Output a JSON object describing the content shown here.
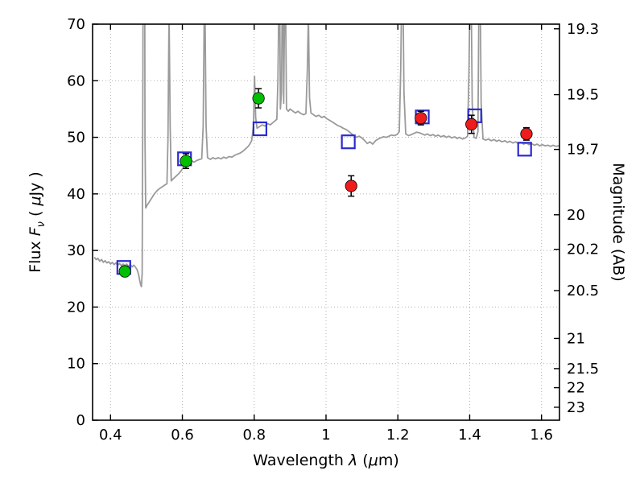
{
  "style": {
    "background": "#ffffff",
    "frame_color": "#000000",
    "grid_color": "#b0b0b0",
    "tick_label_size": 18
  },
  "axes": {
    "x": {
      "label_prefix": "Wavelength  ",
      "label_symbol": "λ",
      "label_mid": " (",
      "label_mu": "μ",
      "label_suffix": "m)",
      "min": 0.35,
      "max": 1.65,
      "ticks": [
        0.4,
        0.6,
        0.8,
        1.0,
        1.2,
        1.4,
        1.6
      ],
      "tick_labels": [
        "0.4",
        "0.6",
        "0.8",
        "1",
        "1.2",
        "1.4",
        "1.6"
      ]
    },
    "y_left": {
      "label_prefix": "Flux  ",
      "label_symbol": "F",
      "label_sub": "ν",
      "label_mid": "  ( ",
      "label_mu": "μ",
      "label_suffix": "Jy )",
      "min": 0,
      "max": 70,
      "ticks": [
        0,
        10,
        20,
        30,
        40,
        50,
        60,
        70
      ],
      "tick_labels": [
        "0",
        "10",
        "20",
        "30",
        "40",
        "50",
        "60",
        "70"
      ]
    },
    "y_right": {
      "label": "Magnitude (AB)",
      "tick_labels": [
        "19.3",
        "19.5",
        "19.7",
        "20",
        "20.2",
        "20.5",
        "21",
        "21.5",
        "22",
        "23"
      ],
      "tick_flux_values": [
        69.18,
        57.54,
        47.86,
        36.31,
        30.2,
        22.91,
        14.45,
        9.12,
        5.75,
        2.29
      ]
    }
  },
  "chart_data": {
    "type": "line",
    "title": "",
    "xlabel": "Wavelength λ (μm)",
    "ylabel_left": "Flux Fν ( μJy )",
    "ylabel_right": "Magnitude (AB)",
    "xlim": [
      0.35,
      1.65
    ],
    "ylim_left": [
      0,
      70
    ],
    "grid": "dotted",
    "legend": "none",
    "series": [
      {
        "name": "model-spectrum",
        "type": "line",
        "color": "#9a9a9a",
        "linewidth": 1.8,
        "points": [
          [
            0.355,
            28.8
          ],
          [
            0.36,
            28.4
          ],
          [
            0.365,
            28.6
          ],
          [
            0.37,
            28.1
          ],
          [
            0.375,
            28.4
          ],
          [
            0.38,
            27.9
          ],
          [
            0.385,
            28.2
          ],
          [
            0.39,
            27.8
          ],
          [
            0.395,
            28.0
          ],
          [
            0.4,
            27.6
          ],
          [
            0.405,
            27.9
          ],
          [
            0.41,
            27.5
          ],
          [
            0.415,
            27.8
          ],
          [
            0.42,
            27.4
          ],
          [
            0.425,
            27.7
          ],
          [
            0.43,
            27.3
          ],
          [
            0.435,
            27.6
          ],
          [
            0.44,
            27.3
          ],
          [
            0.445,
            27.6
          ],
          [
            0.45,
            27.2
          ],
          [
            0.455,
            27.5
          ],
          [
            0.46,
            27.1
          ],
          [
            0.465,
            27.4
          ],
          [
            0.47,
            27.0
          ],
          [
            0.474,
            26.6
          ],
          [
            0.478,
            25.8
          ],
          [
            0.481,
            24.8
          ],
          [
            0.484,
            23.9
          ],
          [
            0.486,
            23.6
          ],
          [
            0.488,
            26.0
          ],
          [
            0.49,
            60.0
          ],
          [
            0.492,
            130.0
          ],
          [
            0.494,
            130.0
          ],
          [
            0.496,
            50.0
          ],
          [
            0.498,
            37.5
          ],
          [
            0.502,
            38.0
          ],
          [
            0.508,
            38.6
          ],
          [
            0.515,
            39.3
          ],
          [
            0.522,
            40.0
          ],
          [
            0.53,
            40.6
          ],
          [
            0.538,
            41.0
          ],
          [
            0.545,
            41.3
          ],
          [
            0.552,
            41.6
          ],
          [
            0.557,
            41.8
          ],
          [
            0.56,
            50.0
          ],
          [
            0.563,
            72.5
          ],
          [
            0.566,
            52.0
          ],
          [
            0.569,
            42.3
          ],
          [
            0.575,
            42.7
          ],
          [
            0.582,
            43.1
          ],
          [
            0.59,
            43.6
          ],
          [
            0.598,
            44.2
          ],
          [
            0.605,
            44.9
          ],
          [
            0.612,
            45.4
          ],
          [
            0.618,
            45.7
          ],
          [
            0.625,
            45.9
          ],
          [
            0.632,
            45.6
          ],
          [
            0.64,
            45.9
          ],
          [
            0.648,
            46.1
          ],
          [
            0.654,
            46.2
          ],
          [
            0.658,
            52.0
          ],
          [
            0.661,
            73.5
          ],
          [
            0.663,
            73.5
          ],
          [
            0.666,
            52.0
          ],
          [
            0.67,
            46.4
          ],
          [
            0.678,
            46.1
          ],
          [
            0.685,
            46.4
          ],
          [
            0.692,
            46.2
          ],
          [
            0.7,
            46.4
          ],
          [
            0.708,
            46.2
          ],
          [
            0.715,
            46.5
          ],
          [
            0.722,
            46.3
          ],
          [
            0.73,
            46.6
          ],
          [
            0.738,
            46.5
          ],
          [
            0.745,
            46.8
          ],
          [
            0.752,
            47.0
          ],
          [
            0.76,
            47.2
          ],
          [
            0.768,
            47.5
          ],
          [
            0.775,
            47.9
          ],
          [
            0.782,
            48.3
          ],
          [
            0.788,
            48.8
          ],
          [
            0.793,
            49.4
          ],
          [
            0.798,
            52.0
          ],
          [
            0.801,
            60.8
          ],
          [
            0.804,
            53.5
          ],
          [
            0.808,
            51.6
          ],
          [
            0.815,
            51.9
          ],
          [
            0.822,
            52.2
          ],
          [
            0.83,
            52.0
          ],
          [
            0.838,
            52.4
          ],
          [
            0.845,
            52.2
          ],
          [
            0.852,
            52.6
          ],
          [
            0.858,
            52.9
          ],
          [
            0.863,
            53.2
          ],
          [
            0.866,
            60.0
          ],
          [
            0.869,
            76.0
          ],
          [
            0.871,
            76.0
          ],
          [
            0.873,
            55.0
          ],
          [
            0.876,
            58.0
          ],
          [
            0.878,
            76.0
          ],
          [
            0.88,
            76.0
          ],
          [
            0.882,
            56.0
          ],
          [
            0.885,
            76.0
          ],
          [
            0.887,
            76.0
          ],
          [
            0.89,
            55.0
          ],
          [
            0.895,
            54.6
          ],
          [
            0.9,
            55.0
          ],
          [
            0.908,
            54.6
          ],
          [
            0.915,
            54.3
          ],
          [
            0.922,
            54.6
          ],
          [
            0.93,
            54.2
          ],
          [
            0.938,
            54.0
          ],
          [
            0.944,
            54.2
          ],
          [
            0.948,
            62.0
          ],
          [
            0.951,
            71.5
          ],
          [
            0.954,
            57.0
          ],
          [
            0.958,
            54.3
          ],
          [
            0.965,
            54.0
          ],
          [
            0.972,
            53.7
          ],
          [
            0.98,
            53.9
          ],
          [
            0.988,
            53.5
          ],
          [
            0.995,
            53.7
          ],
          [
            1.002,
            53.3
          ],
          [
            1.01,
            53.0
          ],
          [
            1.018,
            52.7
          ],
          [
            1.025,
            52.4
          ],
          [
            1.032,
            52.1
          ],
          [
            1.04,
            51.9
          ],
          [
            1.048,
            51.6
          ],
          [
            1.055,
            51.4
          ],
          [
            1.062,
            51.1
          ],
          [
            1.07,
            50.7
          ],
          [
            1.078,
            50.3
          ],
          [
            1.085,
            50.0
          ],
          [
            1.092,
            50.2
          ],
          [
            1.1,
            49.9
          ],
          [
            1.108,
            49.4
          ],
          [
            1.115,
            48.9
          ],
          [
            1.122,
            49.2
          ],
          [
            1.13,
            48.8
          ],
          [
            1.138,
            49.4
          ],
          [
            1.145,
            49.7
          ],
          [
            1.152,
            49.9
          ],
          [
            1.16,
            50.1
          ],
          [
            1.168,
            50.0
          ],
          [
            1.175,
            50.2
          ],
          [
            1.182,
            50.4
          ],
          [
            1.19,
            50.3
          ],
          [
            1.198,
            50.5
          ],
          [
            1.204,
            51.0
          ],
          [
            1.208,
            62.0
          ],
          [
            1.211,
            77.0
          ],
          [
            1.214,
            77.0
          ],
          [
            1.217,
            58.0
          ],
          [
            1.222,
            50.6
          ],
          [
            1.23,
            50.3
          ],
          [
            1.238,
            50.5
          ],
          [
            1.245,
            50.7
          ],
          [
            1.252,
            50.9
          ],
          [
            1.26,
            50.8
          ],
          [
            1.268,
            50.6
          ],
          [
            1.275,
            50.4
          ],
          [
            1.282,
            50.6
          ],
          [
            1.29,
            50.3
          ],
          [
            1.298,
            50.5
          ],
          [
            1.305,
            50.2
          ],
          [
            1.312,
            50.4
          ],
          [
            1.32,
            50.1
          ],
          [
            1.328,
            50.3
          ],
          [
            1.335,
            50.0
          ],
          [
            1.342,
            50.2
          ],
          [
            1.35,
            49.9
          ],
          [
            1.358,
            50.1
          ],
          [
            1.365,
            49.8
          ],
          [
            1.372,
            50.0
          ],
          [
            1.38,
            49.7
          ],
          [
            1.388,
            49.9
          ],
          [
            1.394,
            50.2
          ],
          [
            1.398,
            62.0
          ],
          [
            1.401,
            77.0
          ],
          [
            1.404,
            77.0
          ],
          [
            1.407,
            56.0
          ],
          [
            1.412,
            50.0
          ],
          [
            1.418,
            49.8
          ],
          [
            1.423,
            51.0
          ],
          [
            1.426,
            77.0
          ],
          [
            1.429,
            77.0
          ],
          [
            1.432,
            56.0
          ],
          [
            1.437,
            49.7
          ],
          [
            1.445,
            49.5
          ],
          [
            1.452,
            49.7
          ],
          [
            1.46,
            49.4
          ],
          [
            1.468,
            49.6
          ],
          [
            1.475,
            49.3
          ],
          [
            1.482,
            49.5
          ],
          [
            1.49,
            49.2
          ],
          [
            1.498,
            49.4
          ],
          [
            1.505,
            49.1
          ],
          [
            1.512,
            49.3
          ],
          [
            1.52,
            49.0
          ],
          [
            1.528,
            49.2
          ],
          [
            1.535,
            48.9
          ],
          [
            1.542,
            49.1
          ],
          [
            1.55,
            48.8
          ],
          [
            1.558,
            49.0
          ],
          [
            1.565,
            48.7
          ],
          [
            1.572,
            48.9
          ],
          [
            1.58,
            48.6
          ],
          [
            1.588,
            48.8
          ],
          [
            1.595,
            48.5
          ],
          [
            1.602,
            48.7
          ],
          [
            1.61,
            48.5
          ],
          [
            1.618,
            48.6
          ],
          [
            1.625,
            48.4
          ],
          [
            1.632,
            48.6
          ],
          [
            1.64,
            48.4
          ],
          [
            1.648,
            48.5
          ],
          [
            1.655,
            48.3
          ]
        ]
      },
      {
        "name": "observed-photometry-green",
        "type": "scatter",
        "marker": "filled-circle",
        "color": "#00bf00",
        "error_bars": true,
        "points": [
          [
            0.44,
            26.3,
            0.9
          ],
          [
            0.61,
            45.8,
            1.3
          ],
          [
            0.812,
            56.9,
            1.7
          ]
        ]
      },
      {
        "name": "observed-photometry-red",
        "type": "scatter",
        "marker": "filled-circle",
        "color": "#ee1c1c",
        "error_bars": true,
        "points": [
          [
            1.07,
            41.4,
            1.8
          ],
          [
            1.264,
            53.4,
            1.2
          ],
          [
            1.405,
            52.3,
            1.6
          ],
          [
            1.558,
            50.6,
            1.1
          ]
        ]
      },
      {
        "name": "model-photometry",
        "type": "scatter",
        "marker": "open-square",
        "color": "#2b2bd0",
        "error_bars": false,
        "points": [
          [
            0.437,
            27.0
          ],
          [
            0.606,
            46.2
          ],
          [
            0.816,
            51.5
          ],
          [
            1.062,
            49.2
          ],
          [
            1.268,
            53.6
          ],
          [
            1.414,
            53.8
          ],
          [
            1.553,
            47.9
          ]
        ]
      }
    ]
  }
}
